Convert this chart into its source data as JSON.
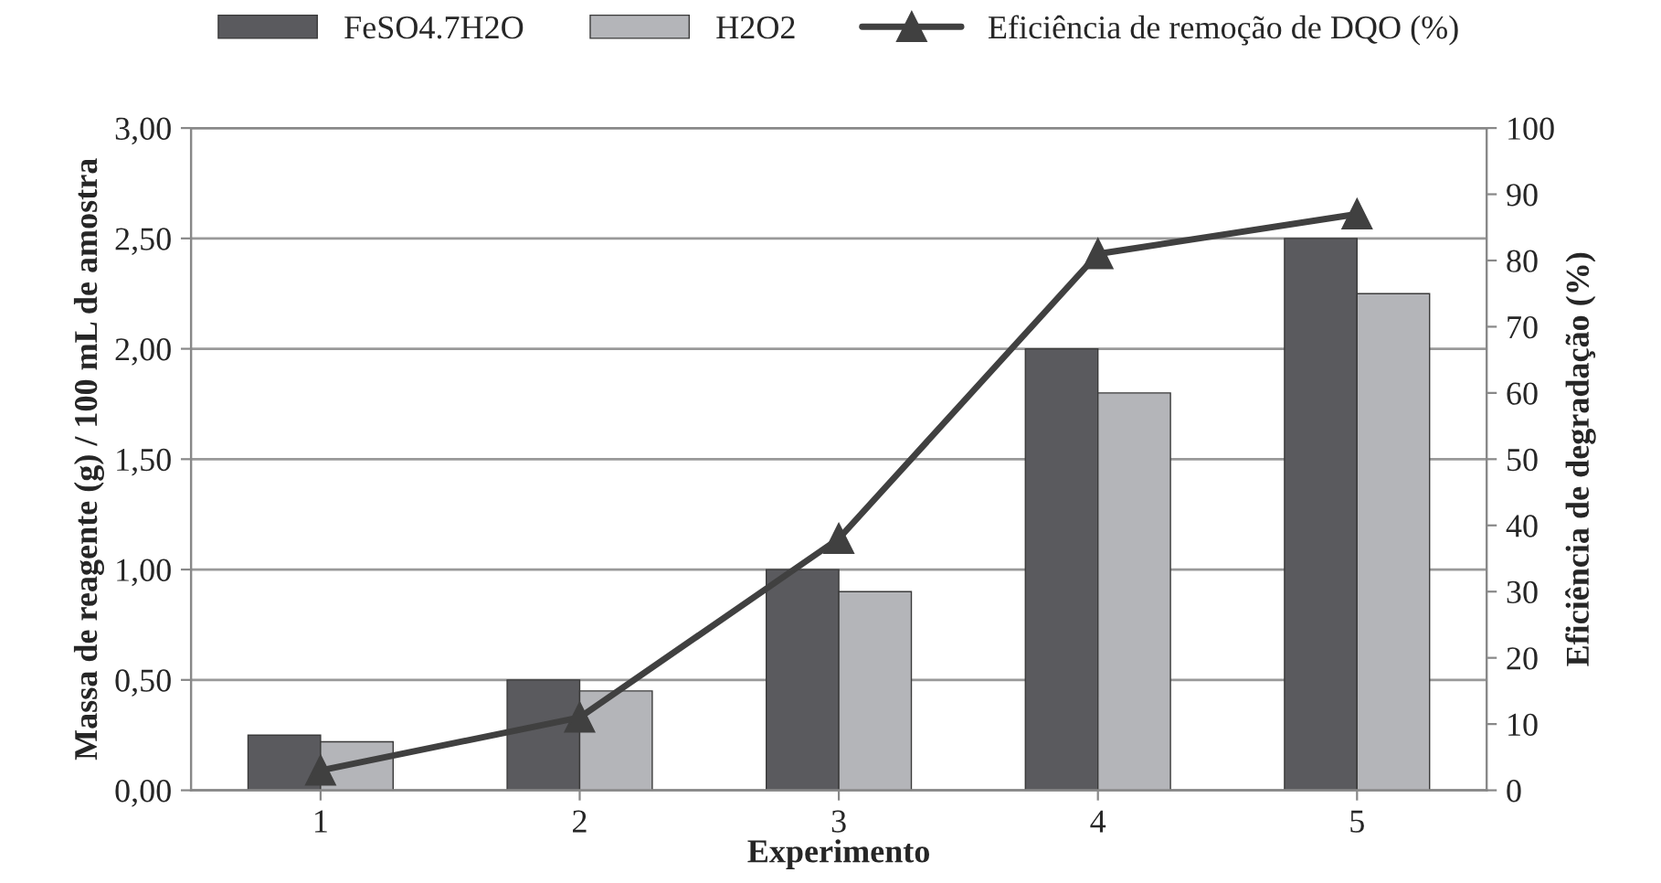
{
  "chart_data": {
    "type": "bar",
    "xlabel": "Experimento",
    "ylabel": "Massa de reagente (g) / 100 mL de amostra",
    "y2label": "Eficiência de degradação (%)",
    "categories": [
      "1",
      "2",
      "3",
      "4",
      "5"
    ],
    "series": [
      {
        "name": "FeSO4.7H2O",
        "color": "#5a5a5e",
        "values": [
          0.25,
          0.5,
          1.0,
          2.0,
          2.5
        ]
      },
      {
        "name": "H2O2",
        "color": "#b4b5b9",
        "values": [
          0.22,
          0.45,
          0.9,
          1.8,
          2.25
        ]
      },
      {
        "name": "Eficiência de remoção de DQO (%)",
        "type": "line",
        "axis": "y2",
        "color": "#404040",
        "marker": "triangle",
        "line_style": "solid",
        "values": [
          3,
          11,
          38,
          81,
          87
        ]
      }
    ],
    "ylim": [
      0,
      3
    ],
    "yticks": [
      {
        "value": 0,
        "label": "0,00"
      },
      {
        "value": 0.5,
        "label": "0,50"
      },
      {
        "value": 1,
        "label": "1,00"
      },
      {
        "value": 1.5,
        "label": "1,50"
      },
      {
        "value": 2,
        "label": "2,00"
      },
      {
        "value": 2.5,
        "label": "2,50"
      },
      {
        "value": 3,
        "label": "3,00"
      }
    ],
    "y2lim": [
      0,
      100
    ],
    "y2ticks": [
      0,
      10,
      20,
      30,
      40,
      50,
      60,
      70,
      80,
      90,
      100
    ],
    "grid": "y",
    "legend": "top"
  }
}
